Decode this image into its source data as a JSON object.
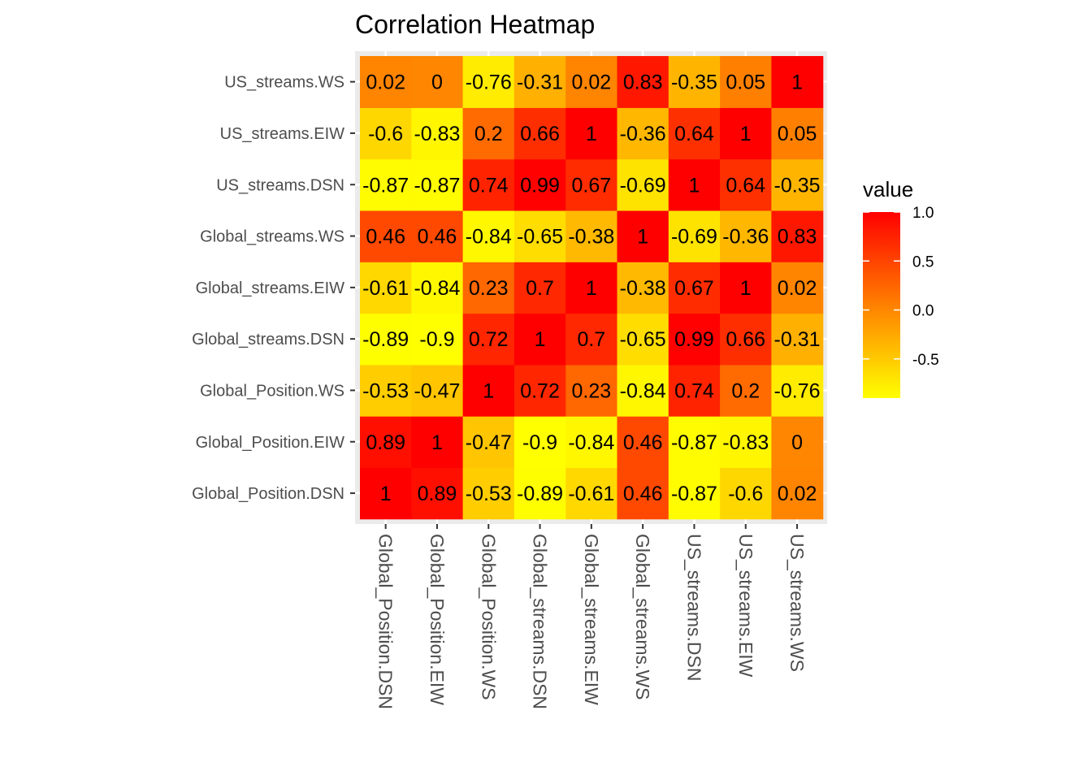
{
  "chart_data": {
    "type": "heatmap",
    "title": "Correlation Heatmap",
    "x_categories": [
      "Global_Position.DSN",
      "Global_Position.EIW",
      "Global_Position.WS",
      "Global_streams.DSN",
      "Global_streams.EIW",
      "Global_streams.WS",
      "US_streams.DSN",
      "US_streams.EIW",
      "US_streams.WS"
    ],
    "y_categories": [
      "Global_Position.DSN",
      "Global_Position.EIW",
      "Global_Position.WS",
      "Global_streams.DSN",
      "Global_streams.EIW",
      "Global_streams.WS",
      "US_streams.DSN",
      "US_streams.EIW",
      "US_streams.WS"
    ],
    "values": [
      [
        1,
        0.89,
        -0.53,
        -0.89,
        -0.61,
        0.46,
        -0.87,
        -0.6,
        0.02
      ],
      [
        0.89,
        1,
        -0.47,
        -0.9,
        -0.84,
        0.46,
        -0.87,
        -0.83,
        0
      ],
      [
        -0.53,
        -0.47,
        1,
        0.72,
        0.23,
        -0.84,
        0.74,
        0.2,
        -0.76
      ],
      [
        -0.89,
        -0.9,
        0.72,
        1,
        0.7,
        -0.65,
        0.99,
        0.66,
        -0.31
      ],
      [
        -0.61,
        -0.84,
        0.23,
        0.7,
        1,
        -0.38,
        0.67,
        1,
        0.02
      ],
      [
        0.46,
        0.46,
        -0.84,
        -0.65,
        -0.38,
        1,
        -0.69,
        -0.36,
        0.83
      ],
      [
        -0.87,
        -0.87,
        0.74,
        0.99,
        0.67,
        -0.69,
        1,
        0.64,
        -0.35
      ],
      [
        -0.6,
        -0.83,
        0.2,
        0.66,
        1,
        -0.36,
        0.64,
        1,
        0.05
      ],
      [
        0.02,
        0,
        -0.76,
        -0.31,
        0.02,
        0.83,
        -0.35,
        0.05,
        1
      ]
    ],
    "legend": {
      "title": "value",
      "placement": "right",
      "ticks": [
        "1.0",
        "0.5",
        "0.0",
        "-0.5"
      ],
      "tick_values": [
        1.0,
        0.5,
        0.0,
        -0.5
      ],
      "range": [
        -0.9,
        1.0
      ]
    },
    "colors": {
      "low": "#ffff00",
      "high": "#ff0000",
      "panel_bg": "#ebebeb",
      "grid": "#ffffff"
    }
  }
}
